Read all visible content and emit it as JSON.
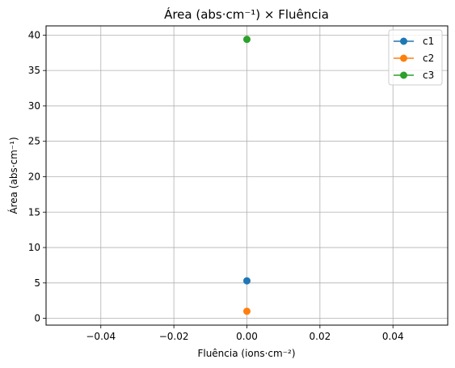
{
  "chart_data": {
    "type": "scatter",
    "title": "Área (abs·cm⁻¹) × Fluência",
    "xlabel": "Fluência (ions·cm⁻²)",
    "ylabel": "Área (abs·cm⁻¹)",
    "xlim": [
      -0.055,
      0.055
    ],
    "ylim": [
      -0.96,
      41.3
    ],
    "x_ticks": [
      -0.04,
      -0.02,
      0.0,
      0.02,
      0.04
    ],
    "x_tick_labels": [
      "−0.04",
      "−0.02",
      "0.00",
      "0.02",
      "0.04"
    ],
    "y_ticks": [
      0,
      5,
      10,
      15,
      20,
      25,
      30,
      35,
      40
    ],
    "y_tick_labels": [
      "0",
      "5",
      "10",
      "15",
      "20",
      "25",
      "30",
      "35",
      "40"
    ],
    "grid": true,
    "legend_position": "top-right",
    "series": [
      {
        "name": "c1",
        "color": "#1f77b4",
        "x": [
          0.0
        ],
        "y": [
          5.3
        ]
      },
      {
        "name": "c2",
        "color": "#ff7f0e",
        "x": [
          0.0
        ],
        "y": [
          1.0
        ]
      },
      {
        "name": "c3",
        "color": "#2ca02c",
        "x": [
          0.0
        ],
        "y": [
          39.4
        ]
      }
    ]
  }
}
